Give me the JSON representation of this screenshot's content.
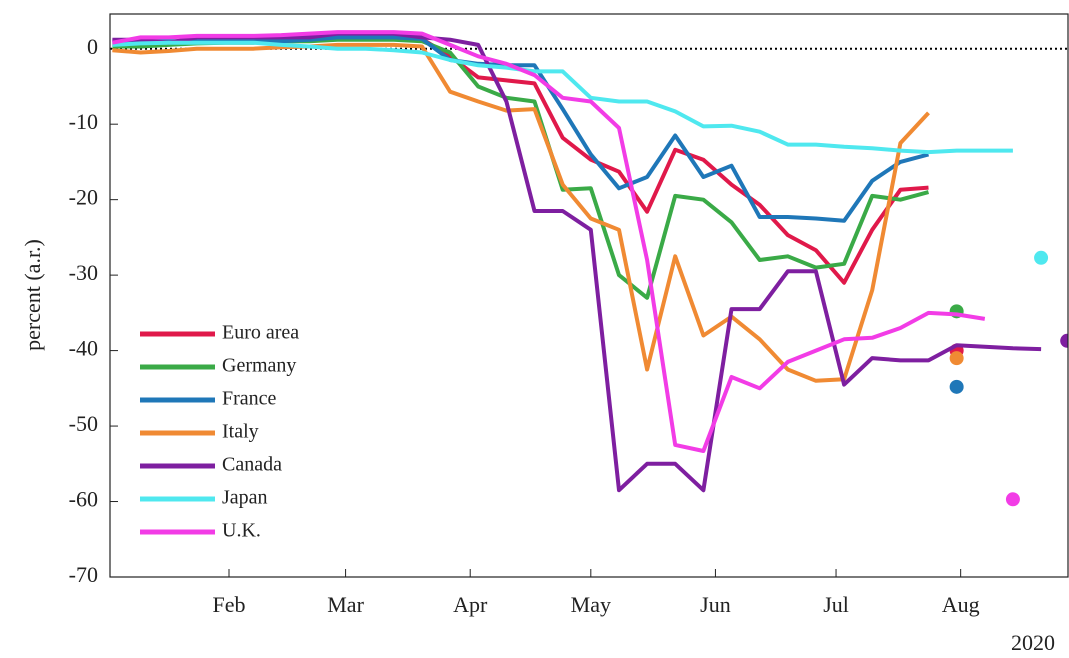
{
  "chart_data": {
    "type": "line",
    "ylabel": "percent (a.r.)",
    "x_label": "2020",
    "x": [
      3,
      10,
      17,
      24,
      31,
      38,
      45,
      52,
      59,
      66,
      73,
      80,
      87,
      94,
      101,
      108,
      115,
      122,
      129,
      136,
      143,
      150,
      157,
      164,
      171,
      178,
      185,
      192,
      199,
      206,
      213,
      220,
      227,
      234
    ],
    "xlim": [
      2.4,
      240.7
    ],
    "xticks": [
      {
        "value": 32,
        "label": "Feb"
      },
      {
        "value": 61,
        "label": "Mar"
      },
      {
        "value": 92,
        "label": "Apr"
      },
      {
        "value": 122,
        "label": "May"
      },
      {
        "value": 153,
        "label": "Jun"
      },
      {
        "value": 183,
        "label": "Jul"
      },
      {
        "value": 214,
        "label": "Aug"
      }
    ],
    "ylim": [
      -70,
      4.6
    ],
    "yticks": [
      0,
      -10,
      -20,
      -30,
      -40,
      -50,
      -60,
      -70
    ],
    "reference_line": 0,
    "legend": "lower left",
    "series": [
      {
        "name": "Euro area",
        "color": "#e0194a",
        "values": [
          0.5,
          0.5,
          0.8,
          1,
          1,
          1,
          1.2,
          1.3,
          1.5,
          1.5,
          1.5,
          1.3,
          -1,
          -3.8,
          -4.2,
          -4.6,
          -11.8,
          -14.7,
          -16.3,
          -21.6,
          -13.4,
          -14.7,
          -18,
          -20.7,
          -24.7,
          -26.7,
          -31,
          -24,
          -18.7,
          -18.4,
          null,
          null,
          null,
          null
        ],
        "point": {
          "x": 213,
          "value": -40
        }
      },
      {
        "name": "Germany",
        "color": "#3aaa47",
        "values": [
          0.3,
          0.3,
          0.5,
          0.7,
          0.8,
          0.8,
          1,
          1,
          1.2,
          1.2,
          1.2,
          1,
          -0.5,
          -5,
          -6.5,
          -7,
          -18.7,
          -18.5,
          -30,
          -33,
          -19.5,
          -20,
          -23,
          -28,
          -27.5,
          -29,
          -28.5,
          -19.5,
          -20,
          -19,
          null,
          null,
          null,
          null
        ],
        "point": {
          "x": 213,
          "value": -34.8
        }
      },
      {
        "name": "France",
        "color": "#1f77b8",
        "values": [
          1,
          1,
          1,
          1,
          1,
          1,
          1,
          1.2,
          1.5,
          1.5,
          1.5,
          1.3,
          -1.5,
          -2,
          -2.2,
          -2.2,
          -8,
          -14,
          -18.5,
          -17,
          -11.5,
          -17,
          -15.5,
          -22.3,
          -22.3,
          -22.5,
          -22.8,
          -17.5,
          -15,
          -14,
          null,
          null,
          null,
          null
        ],
        "point": {
          "x": 213,
          "value": -44.8
        }
      },
      {
        "name": "Italy",
        "color": "#f08a33",
        "values": [
          -0.2,
          -0.5,
          -0.3,
          0,
          0,
          0,
          0.2,
          0.3,
          0.5,
          0.5,
          0.5,
          0.3,
          -5.7,
          -7,
          -8.2,
          -8,
          -18,
          -22.5,
          -24,
          -42.5,
          -27.5,
          -38,
          -35.5,
          -38.5,
          -42.5,
          -44,
          -43.8,
          -32,
          -12.5,
          -8.5,
          null,
          null,
          null,
          null
        ],
        "point": {
          "x": 213,
          "value": -41
        }
      },
      {
        "name": "Canada",
        "color": "#7e1fa0",
        "values": [
          1.2,
          1.2,
          0.8,
          1.5,
          1.5,
          1.5,
          1.5,
          1.5,
          2,
          2,
          2,
          1.5,
          1.2,
          0.5,
          -7,
          -21.5,
          -21.5,
          -24,
          -58.5,
          -55,
          -55,
          -58.5,
          -34.5,
          -34.5,
          -29.5,
          -29.5,
          -44.5,
          -41,
          -41.3,
          -41.3,
          -39.3,
          -39.5,
          -39.7,
          -39.8
        ],
        "point": {
          "x": 240.5,
          "value": -38.7
        }
      },
      {
        "name": "Japan",
        "color": "#4fe8ef",
        "values": [
          0.5,
          0.7,
          0.8,
          0.8,
          0.8,
          0.8,
          0.5,
          0.3,
          0,
          0,
          -0.2,
          -0.5,
          -1.5,
          -2.2,
          -2.5,
          -3,
          -3,
          -6.5,
          -7,
          -7,
          -8.3,
          -10.3,
          -10.2,
          -11,
          -12.7,
          -12.7,
          -13,
          -13.2,
          -13.5,
          -13.7,
          -13.5,
          -13.5,
          -13.5,
          null
        ],
        "point": {
          "x": 234,
          "value": -27.7
        }
      },
      {
        "name": "U.K.",
        "color": "#f23ce6",
        "values": [
          0.8,
          1.5,
          1.5,
          1.7,
          1.7,
          1.7,
          1.8,
          2,
          2.2,
          2.2,
          2.2,
          2,
          0.5,
          -1,
          -2,
          -3.5,
          -6.5,
          -7,
          -10.5,
          -28,
          -52.5,
          -53.3,
          -43.5,
          -45,
          -41.5,
          -40,
          -38.5,
          -38.3,
          -37,
          -35,
          -35.2,
          -35.8,
          null,
          null
        ],
        "point": {
          "x": 227,
          "value": -59.7
        }
      }
    ]
  }
}
